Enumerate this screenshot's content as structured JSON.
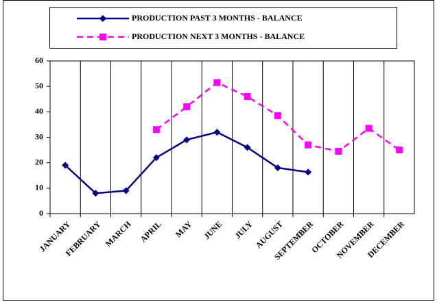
{
  "chart_data": {
    "type": "line",
    "categories": [
      "JANUARY",
      "FEBRUARY",
      "MARCH",
      "APRIL",
      "MAY",
      "JUNE",
      "JULY",
      "AUGUST",
      "SEPTEMBER",
      "OCTOBER",
      "NOVEMBER",
      "DECEMBER"
    ],
    "series": [
      {
        "name": "PRODUCTION PAST 3 MONTHS - BALANCE",
        "color": "#000080",
        "marker": "diamond",
        "dash": false,
        "values": [
          19,
          8,
          9,
          22,
          29,
          32,
          26,
          18,
          16.3,
          null,
          null,
          null
        ]
      },
      {
        "name": "PRODUCTION NEXT 3 MONTHS - BALANCE",
        "color": "#ff00ff",
        "marker": "square",
        "dash": true,
        "values": [
          null,
          null,
          null,
          33,
          42,
          51.5,
          46,
          38.5,
          27,
          24.5,
          33.5,
          25
        ]
      }
    ],
    "ylim": [
      0,
      60
    ],
    "yticks": [
      0,
      10,
      20,
      30,
      40,
      50,
      60
    ],
    "grid": "vertical",
    "legend": "top"
  }
}
